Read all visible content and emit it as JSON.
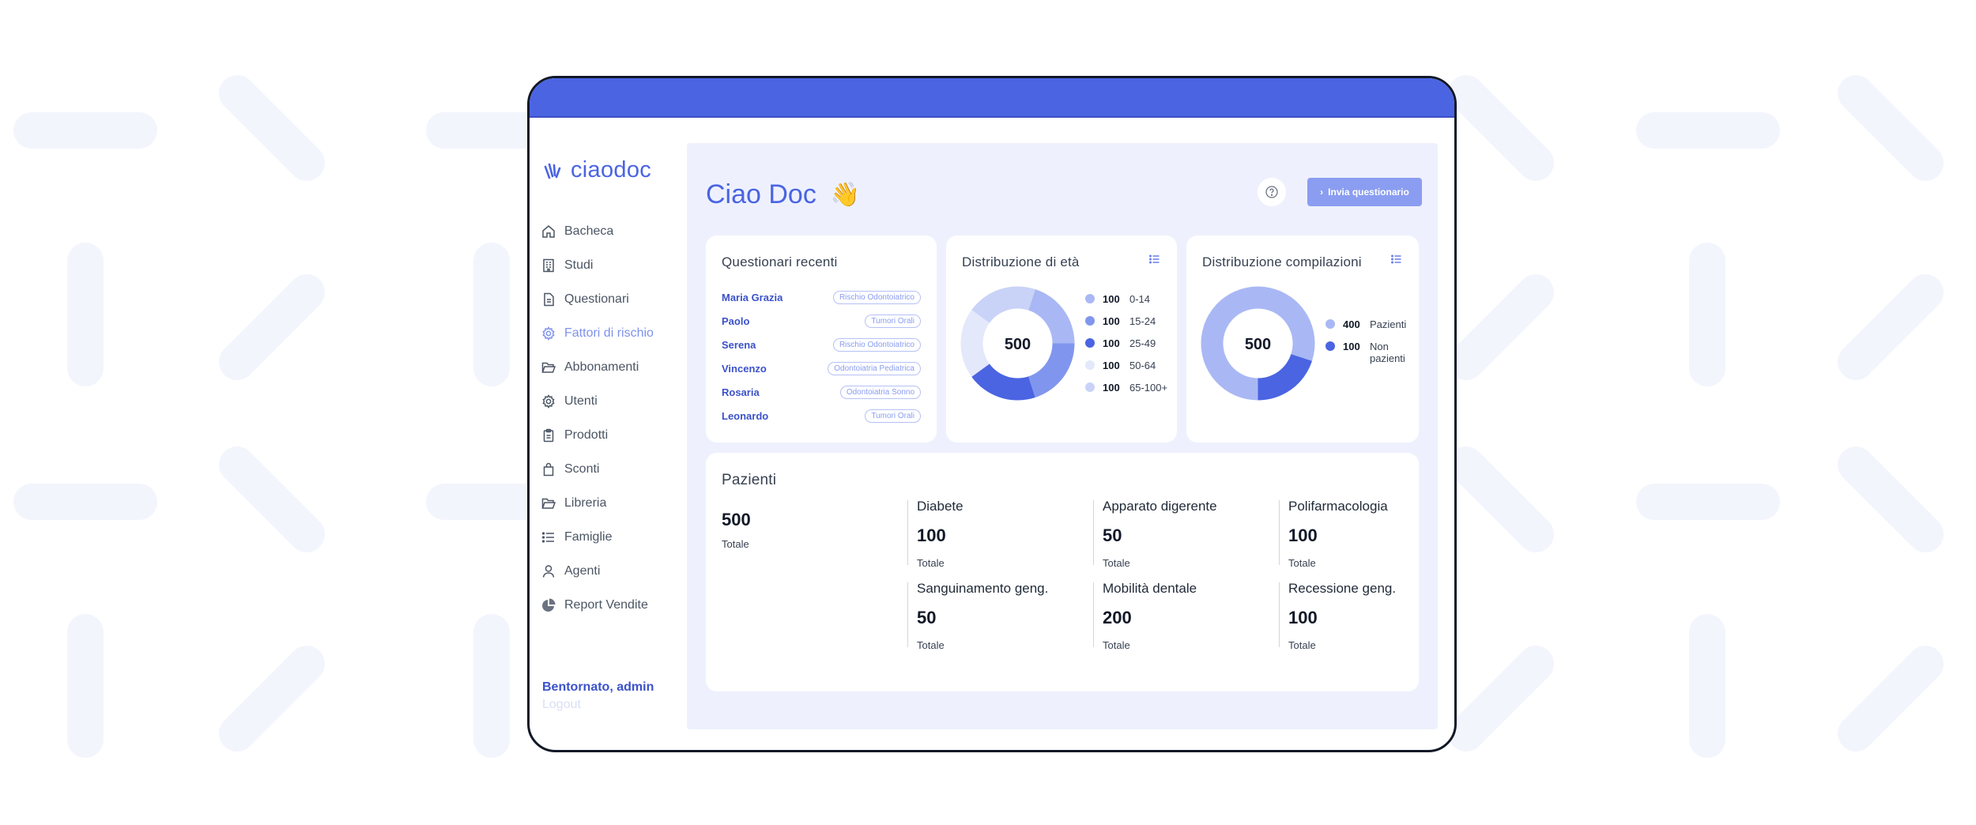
{
  "brand": {
    "name": "ciaodoc"
  },
  "sidebar": {
    "items": [
      {
        "label": "Bacheca",
        "icon": "home-icon"
      },
      {
        "label": "Studi",
        "icon": "building-icon"
      },
      {
        "label": "Questionari",
        "icon": "document-icon"
      },
      {
        "label": "Fattori di rischio",
        "icon": "gear-icon",
        "active": true
      },
      {
        "label": "Abbonamenti",
        "icon": "folder-icon"
      },
      {
        "label": "Utenti",
        "icon": "gear-icon"
      },
      {
        "label": "Prodotti",
        "icon": "clipboard-icon"
      },
      {
        "label": "Sconti",
        "icon": "bag-icon"
      },
      {
        "label": "Libreria",
        "icon": "folder-icon"
      },
      {
        "label": "Famiglie",
        "icon": "list-icon"
      },
      {
        "label": "Agenti",
        "icon": "user-icon"
      },
      {
        "label": "Report Vendite",
        "icon": "pie-chart-icon"
      }
    ],
    "welcome": "Bentornato, admin",
    "logout": "Logout"
  },
  "header": {
    "greeting": "Ciao Doc",
    "greeting_emoji": "👋",
    "cta_label": "Invia questionario"
  },
  "recent": {
    "title": "Questionari recenti",
    "rows": [
      {
        "name": "Maria Grazia",
        "tag": "Rischio Odontoiatrico"
      },
      {
        "name": "Paolo",
        "tag": "Tumori Orali"
      },
      {
        "name": "Serena",
        "tag": "Rischio Odontoiatrico"
      },
      {
        "name": "Vincenzo",
        "tag": "Odontoiatria Pediatrica"
      },
      {
        "name": "Rosaria",
        "tag": "Odontoiatria Sonno"
      },
      {
        "name": "Leonardo",
        "tag": "Tumori Orali"
      }
    ]
  },
  "age": {
    "title": "Distribuzione di età",
    "total": "500",
    "legend": [
      {
        "value": "100",
        "label": "0-14",
        "color": "#a9b8f4"
      },
      {
        "value": "100",
        "label": "15-24",
        "color": "#8096ee"
      },
      {
        "value": "100",
        "label": "25-49",
        "color": "#4a64e2"
      },
      {
        "value": "100",
        "label": "50-64",
        "color": "#e3e8fb"
      },
      {
        "value": "100",
        "label": "65-100+",
        "color": "#c9d3f8"
      }
    ]
  },
  "compile": {
    "title": "Distribuzione compilazioni",
    "total": "500",
    "legend": [
      {
        "value": "400",
        "label": "Pazienti",
        "color": "#a9b8f4"
      },
      {
        "value": "100",
        "label": "Non pazienti",
        "color": "#4a64e2"
      }
    ]
  },
  "patients": {
    "title": "Pazienti",
    "total_value": "500",
    "total_label": "Totale",
    "stats": [
      {
        "name": "Diabete",
        "value": "100",
        "label": "Totale"
      },
      {
        "name": "Apparato digerente",
        "value": "50",
        "label": "Totale"
      },
      {
        "name": "Polifarmacologia",
        "value": "100",
        "label": "Totale"
      },
      {
        "name": "Sanguinamento geng.",
        "value": "50",
        "label": "Totale"
      },
      {
        "name": "Mobilità dentale",
        "value": "200",
        "label": "Totale"
      },
      {
        "name": "Recessione geng.",
        "value": "100",
        "label": "Totale"
      }
    ]
  },
  "colors": {
    "primary": "#4a64e2",
    "panel": "#eef1fd",
    "accent_button": "#8a9df0"
  }
}
